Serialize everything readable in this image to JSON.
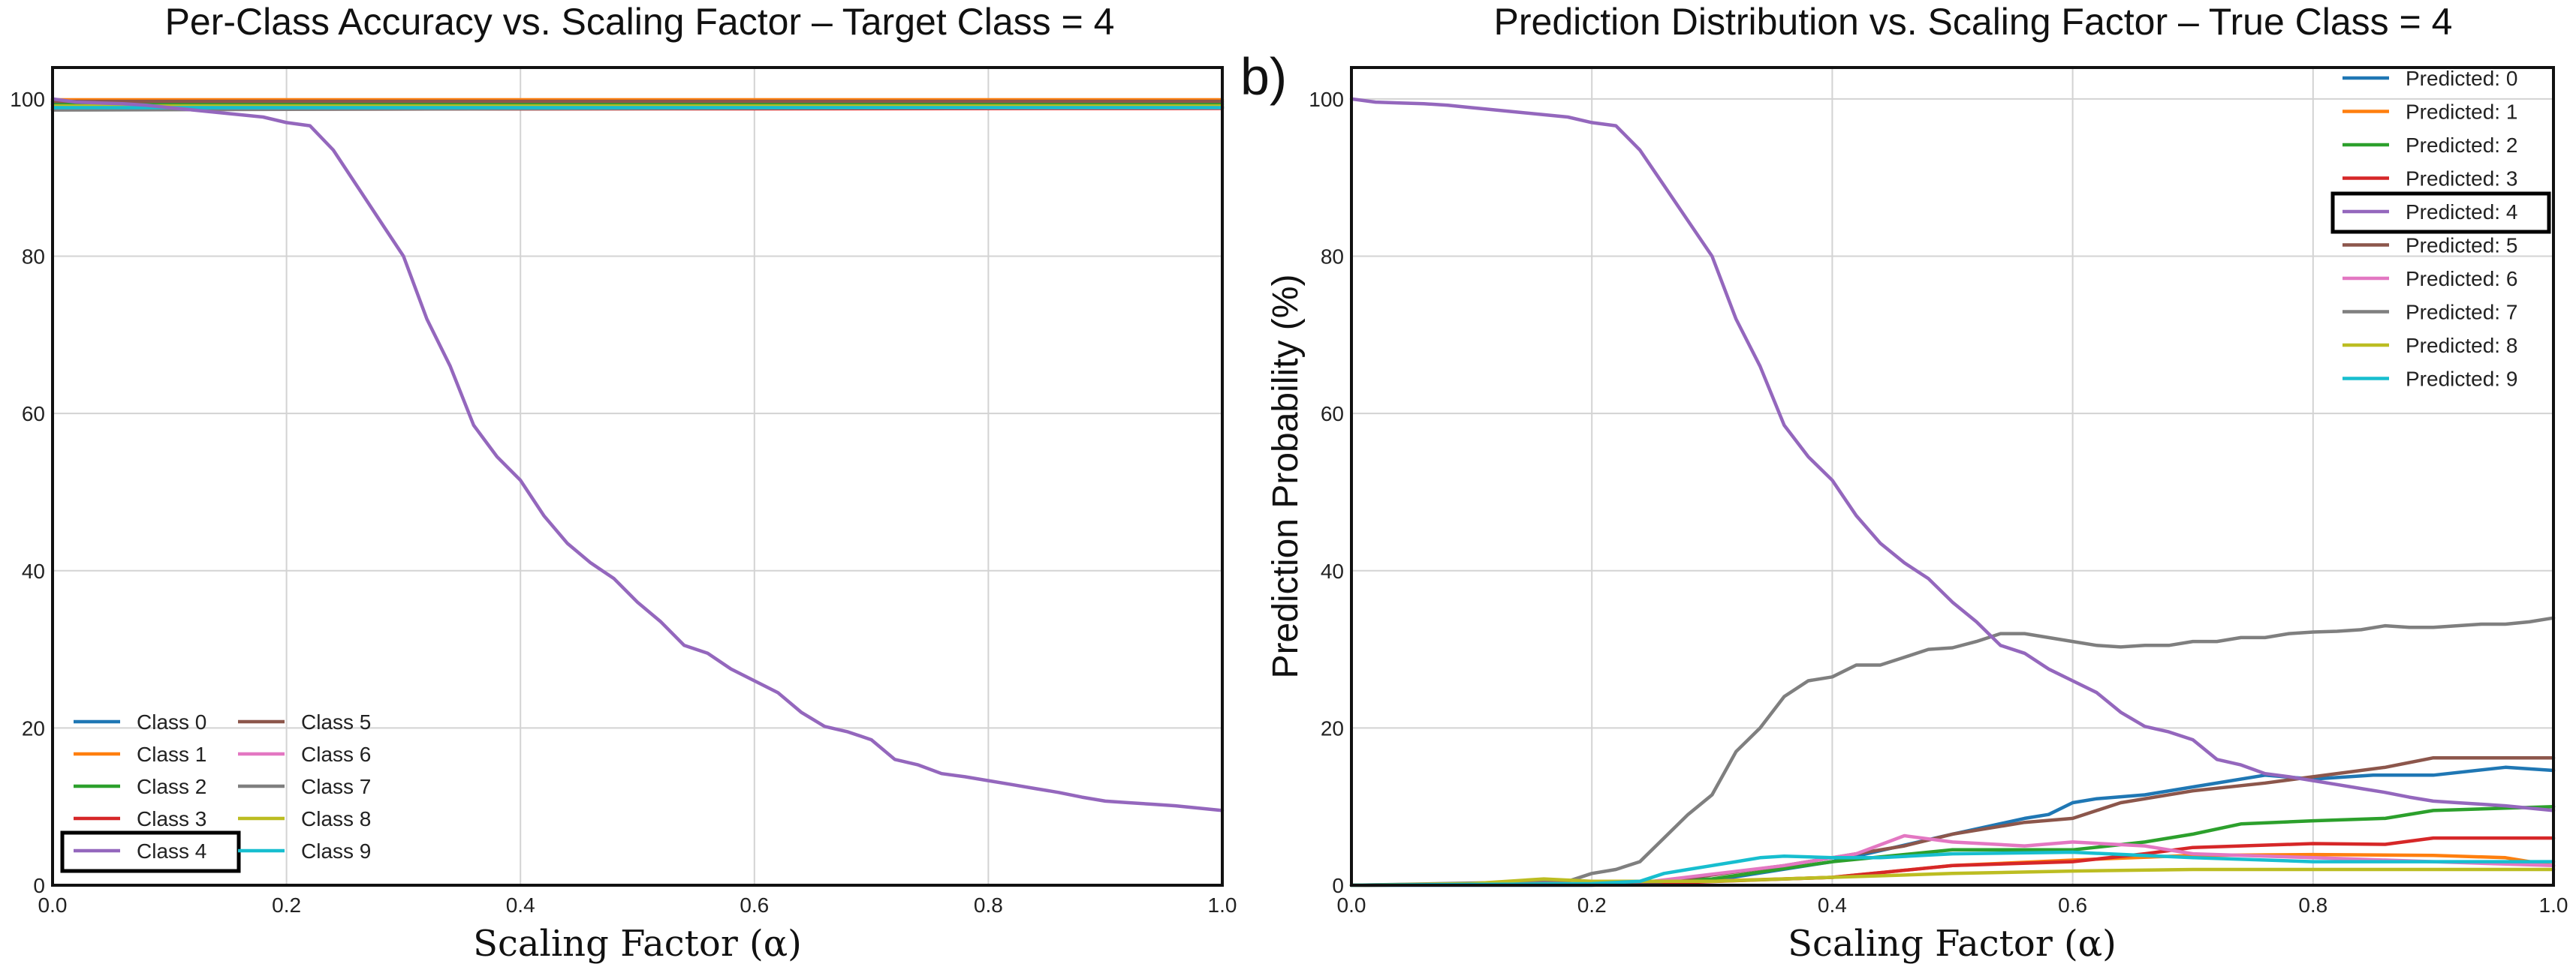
{
  "panel_label": "b)",
  "chart_data": [
    {
      "type": "line",
      "title": "Per-Class Accuracy vs. Scaling Factor – Target Class = 4",
      "xlabel": "Scaling Factor (α)",
      "ylabel": "",
      "xlim": [
        0,
        1
      ],
      "ylim": [
        0,
        104
      ],
      "xticks": [
        0.0,
        0.2,
        0.4,
        0.6,
        0.8,
        1.0
      ],
      "xtick_labels": [
        "0.0",
        "0.2",
        "0.4",
        "0.6",
        "0.8",
        "1.0"
      ],
      "yticks": [
        0,
        20,
        40,
        60,
        80,
        100
      ],
      "ytick_labels": [
        "0",
        "20",
        "40",
        "60",
        "80",
        "100"
      ],
      "grid": true,
      "legend_position": "lower-left",
      "legend_columns": 2,
      "legend_highlight": "Class 4",
      "series": [
        {
          "name": "Class 0",
          "color": "#1f77b4",
          "x": [
            0,
            1
          ],
          "y": [
            99.5,
            99.5
          ]
        },
        {
          "name": "Class 1",
          "color": "#ff7f0e",
          "x": [
            0,
            1
          ],
          "y": [
            99.9,
            99.9
          ]
        },
        {
          "name": "Class 2",
          "color": "#2ca02c",
          "x": [
            0,
            1
          ],
          "y": [
            99.3,
            99.3
          ]
        },
        {
          "name": "Class 3",
          "color": "#d62728",
          "x": [
            0,
            0.12,
            1
          ],
          "y": [
            98.7,
            98.7,
            98.8
          ]
        },
        {
          "name": "Class 4",
          "color": "#9467bd",
          "x": [
            0,
            0.02,
            0.04,
            0.06,
            0.08,
            0.1,
            0.12,
            0.14,
            0.16,
            0.18,
            0.2,
            0.22,
            0.24,
            0.26,
            0.28,
            0.3,
            0.32,
            0.34,
            0.36,
            0.38,
            0.4,
            0.42,
            0.44,
            0.46,
            0.48,
            0.5,
            0.52,
            0.54,
            0.56,
            0.58,
            0.6,
            0.62,
            0.64,
            0.66,
            0.68,
            0.7,
            0.72,
            0.74,
            0.76,
            0.78,
            0.8,
            0.82,
            0.84,
            0.86,
            0.88,
            0.9,
            0.92,
            0.94,
            0.96,
            0.98,
            1.0
          ],
          "y": [
            100,
            99.6,
            99.5,
            99.4,
            99.2,
            98.9,
            98.6,
            98.3,
            98.0,
            97.7,
            97.0,
            96.6,
            93.5,
            89,
            84.5,
            80,
            72,
            66,
            58.5,
            54.5,
            51.5,
            47,
            43.5,
            41,
            39,
            36,
            33.5,
            30.5,
            29.5,
            27.5,
            26,
            24.5,
            22,
            20.2,
            19.5,
            18.5,
            16,
            15.3,
            14.2,
            13.8,
            13.3,
            12.8,
            12.3,
            11.8,
            11.2,
            10.7,
            10.5,
            10.3,
            10.1,
            9.8,
            9.5
          ]
        },
        {
          "name": "Class 5",
          "color": "#8c564b",
          "x": [
            0,
            1
          ],
          "y": [
            99.7,
            99.7
          ]
        },
        {
          "name": "Class 6",
          "color": "#e377c2",
          "x": [
            0,
            1
          ],
          "y": [
            98.9,
            98.9
          ]
        },
        {
          "name": "Class 7",
          "color": "#7f7f7f",
          "x": [
            0,
            0.5,
            1
          ],
          "y": [
            98.6,
            98.8,
            99.0
          ]
        },
        {
          "name": "Class 8",
          "color": "#bcbd22",
          "x": [
            0,
            1
          ],
          "y": [
            99.1,
            99.1
          ]
        },
        {
          "name": "Class 9",
          "color": "#17becf",
          "x": [
            0,
            0.12,
            1
          ],
          "y": [
            98.9,
            98.9,
            98.9
          ]
        }
      ]
    },
    {
      "type": "line",
      "title": "Prediction Distribution vs. Scaling Factor – True Class = 4",
      "xlabel": "Scaling Factor (α)",
      "ylabel": "Prediction Probability (%)",
      "xlim": [
        0,
        1
      ],
      "ylim": [
        0,
        104
      ],
      "xticks": [
        0.0,
        0.2,
        0.4,
        0.6,
        0.8,
        1.0
      ],
      "xtick_labels": [
        "0.0",
        "0.2",
        "0.4",
        "0.6",
        "0.8",
        "1.0"
      ],
      "yticks": [
        0,
        20,
        40,
        60,
        80,
        100
      ],
      "ytick_labels": [
        "0",
        "20",
        "40",
        "60",
        "80",
        "100"
      ],
      "grid": true,
      "legend_position": "upper-right",
      "legend_columns": 1,
      "legend_highlight": "Predicted: 4",
      "series": [
        {
          "name": "Predicted: 0",
          "color": "#1f77b4",
          "x": [
            0,
            0.2,
            0.3,
            0.4,
            0.5,
            0.56,
            0.58,
            0.6,
            0.62,
            0.66,
            0.7,
            0.76,
            0.8,
            0.85,
            0.9,
            0.96,
            1.0
          ],
          "y": [
            0,
            0,
            0.6,
            3.0,
            6.5,
            8.5,
            9,
            10.5,
            11,
            11.5,
            12.5,
            14,
            13.5,
            14,
            14,
            15,
            14.6
          ]
        },
        {
          "name": "Predicted: 1",
          "color": "#ff7f0e",
          "x": [
            0,
            0.25,
            0.4,
            0.5,
            0.6,
            0.7,
            0.8,
            0.9,
            0.96,
            1.0
          ],
          "y": [
            0,
            0.3,
            1.0,
            2.5,
            3.2,
            3.8,
            3.9,
            3.8,
            3.5,
            2.5
          ]
        },
        {
          "name": "Predicted: 2",
          "color": "#2ca02c",
          "x": [
            0,
            0.2,
            0.3,
            0.4,
            0.5,
            0.6,
            0.66,
            0.7,
            0.74,
            0.8,
            0.86,
            0.9,
            0.96,
            1.0
          ],
          "y": [
            0,
            0.1,
            0.8,
            3.0,
            4.5,
            4.5,
            5.5,
            6.5,
            7.8,
            8.2,
            8.5,
            9.5,
            9.8,
            10.0
          ]
        },
        {
          "name": "Predicted: 3",
          "color": "#d62728",
          "x": [
            0,
            0.25,
            0.4,
            0.5,
            0.6,
            0.66,
            0.7,
            0.8,
            0.86,
            0.9,
            0.96,
            1.0
          ],
          "y": [
            0,
            0.2,
            1.0,
            2.5,
            3.0,
            4.0,
            4.8,
            5.3,
            5.2,
            6.0,
            6.0,
            6.0
          ]
        },
        {
          "name": "Predicted: 4",
          "color": "#9467bd",
          "x": [
            0,
            0.02,
            0.04,
            0.06,
            0.08,
            0.1,
            0.12,
            0.14,
            0.16,
            0.18,
            0.2,
            0.22,
            0.24,
            0.26,
            0.28,
            0.3,
            0.32,
            0.34,
            0.36,
            0.38,
            0.4,
            0.42,
            0.44,
            0.46,
            0.48,
            0.5,
            0.52,
            0.54,
            0.56,
            0.58,
            0.6,
            0.62,
            0.64,
            0.66,
            0.68,
            0.7,
            0.72,
            0.74,
            0.76,
            0.78,
            0.8,
            0.82,
            0.84,
            0.86,
            0.88,
            0.9,
            0.92,
            0.94,
            0.96,
            0.98,
            1.0
          ],
          "y": [
            100,
            99.6,
            99.5,
            99.4,
            99.2,
            98.9,
            98.6,
            98.3,
            98.0,
            97.7,
            97.0,
            96.6,
            93.5,
            89,
            84.5,
            80,
            72,
            66,
            58.5,
            54.5,
            51.5,
            47,
            43.5,
            41,
            39,
            36,
            33.5,
            30.5,
            29.5,
            27.5,
            26,
            24.5,
            22,
            20.2,
            19.5,
            18.5,
            16,
            15.3,
            14.2,
            13.8,
            13.3,
            12.8,
            12.3,
            11.8,
            11.2,
            10.7,
            10.5,
            10.3,
            10.1,
            9.8,
            9.5
          ]
        },
        {
          "name": "Predicted: 5",
          "color": "#8c564b",
          "x": [
            0,
            0.25,
            0.36,
            0.4,
            0.46,
            0.5,
            0.56,
            0.6,
            0.64,
            0.7,
            0.76,
            0.8,
            0.86,
            0.9,
            1.0
          ],
          "y": [
            0,
            0.3,
            2.5,
            3.5,
            5.0,
            6.5,
            8.0,
            8.5,
            10.5,
            12.0,
            13.0,
            13.8,
            15.0,
            16.2,
            16.2
          ]
        },
        {
          "name": "Predicted: 6",
          "color": "#e377c2",
          "x": [
            0,
            0.25,
            0.36,
            0.42,
            0.46,
            0.5,
            0.56,
            0.6,
            0.66,
            0.7,
            0.8,
            0.9,
            1.0
          ],
          "y": [
            0,
            0.5,
            2.5,
            4.0,
            6.3,
            5.5,
            5.0,
            5.5,
            5.0,
            4.0,
            3.5,
            3.0,
            2.5
          ]
        },
        {
          "name": "Predicted: 7",
          "color": "#7f7f7f",
          "x": [
            0,
            0.18,
            0.2,
            0.22,
            0.24,
            0.26,
            0.28,
            0.3,
            0.32,
            0.34,
            0.36,
            0.38,
            0.4,
            0.42,
            0.44,
            0.46,
            0.48,
            0.5,
            0.52,
            0.54,
            0.56,
            0.58,
            0.6,
            0.62,
            0.64,
            0.66,
            0.68,
            0.7,
            0.72,
            0.74,
            0.76,
            0.78,
            0.8,
            0.82,
            0.84,
            0.86,
            0.88,
            0.9,
            0.92,
            0.94,
            0.96,
            0.98,
            1.0
          ],
          "y": [
            0,
            0.5,
            1.5,
            2.0,
            3.0,
            6.0,
            9.0,
            11.5,
            17.0,
            20.0,
            24.0,
            26.0,
            26.5,
            28.0,
            28.0,
            29.0,
            30.0,
            30.2,
            31.0,
            32.0,
            32.0,
            31.5,
            31.0,
            30.5,
            30.3,
            30.5,
            30.5,
            31.0,
            31.0,
            31.5,
            31.5,
            32.0,
            32.2,
            32.3,
            32.5,
            33.0,
            32.8,
            32.8,
            33.0,
            33.2,
            33.2,
            33.5,
            34.0
          ]
        },
        {
          "name": "Predicted: 8",
          "color": "#bcbd22",
          "x": [
            0,
            0.1,
            0.16,
            0.2,
            0.3,
            0.4,
            0.5,
            0.6,
            0.7,
            0.8,
            0.9,
            1.0
          ],
          "y": [
            0,
            0.2,
            0.8,
            0.5,
            0.5,
            1.0,
            1.5,
            1.8,
            2.0,
            2.0,
            2.0,
            2.0
          ]
        },
        {
          "name": "Predicted: 9",
          "color": "#17becf",
          "x": [
            0,
            0.2,
            0.24,
            0.26,
            0.28,
            0.3,
            0.32,
            0.34,
            0.36,
            0.4,
            0.44,
            0.5,
            0.6,
            0.7,
            0.8,
            0.9,
            1.0
          ],
          "y": [
            0,
            0.2,
            0.5,
            1.5,
            2.0,
            2.5,
            3.0,
            3.5,
            3.7,
            3.5,
            3.5,
            4.0,
            4.2,
            3.5,
            3.0,
            3.0,
            3.0
          ]
        }
      ]
    }
  ]
}
